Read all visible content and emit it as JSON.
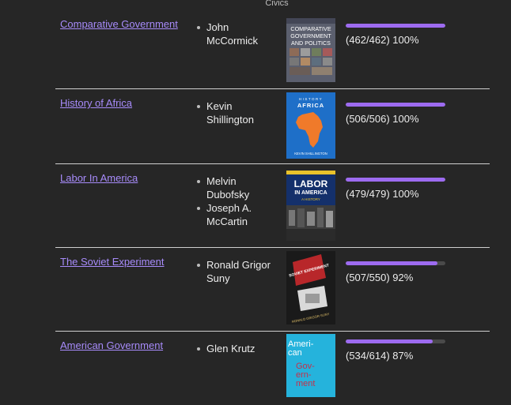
{
  "section": "Civics",
  "books": [
    {
      "title": "Comparative Government",
      "authors": [
        "John McCormick"
      ],
      "progress_text": "(462/462) 100%",
      "progress_fraction": 1.0,
      "cover": {
        "lines": [
          "COMPARATIVE",
          "GOVERNMENT",
          "AND POLITICS"
        ],
        "bg": "#5b5f6e",
        "fg": "#ffffff"
      }
    },
    {
      "title": "History of Africa",
      "authors": [
        "Kevin Shillington"
      ],
      "progress_text": "(506/506) 100%",
      "progress_fraction": 1.0,
      "cover": {
        "lines": [
          "HISTORY",
          "AFRICA",
          "KEVIN SHILLINGTON"
        ],
        "bg": "#1e6fc8",
        "fg": "#ffffff"
      }
    },
    {
      "title": "Labor In America",
      "authors": [
        "Melvin Dubofsky",
        "Joseph A. McCartin"
      ],
      "progress_text": "(479/479) 100%",
      "progress_fraction": 1.0,
      "cover": {
        "lines": [
          "LABOR",
          "IN AMERICA",
          "A HISTORY"
        ],
        "bg": "#14306b",
        "fg": "#ffffff"
      }
    },
    {
      "title": "The Soviet Experiment",
      "authors": [
        "Ronald Grigor Suny"
      ],
      "progress_text": "(507/550) 92%",
      "progress_fraction": 0.92,
      "cover": {
        "lines": [
          "SOVIET EXPERIMENT",
          "RONALD GRIGOR SUNY"
        ],
        "bg": "#b8272a",
        "fg": "#ffffff"
      }
    },
    {
      "title": "American Government",
      "authors": [
        "Glen Krutz"
      ],
      "progress_text": "(534/614) 87%",
      "progress_fraction": 0.87,
      "cover": {
        "lines": [
          "Ameri-",
          "can",
          "Gov-",
          "ern-",
          "ment"
        ],
        "bg": "#25b3dc",
        "fg": "#c4314b"
      }
    }
  ],
  "colors": {
    "link": "#a78bfa",
    "bar_fill": "#9d6bf0",
    "bar_track": "#4a4a4a",
    "background": "#262626"
  }
}
